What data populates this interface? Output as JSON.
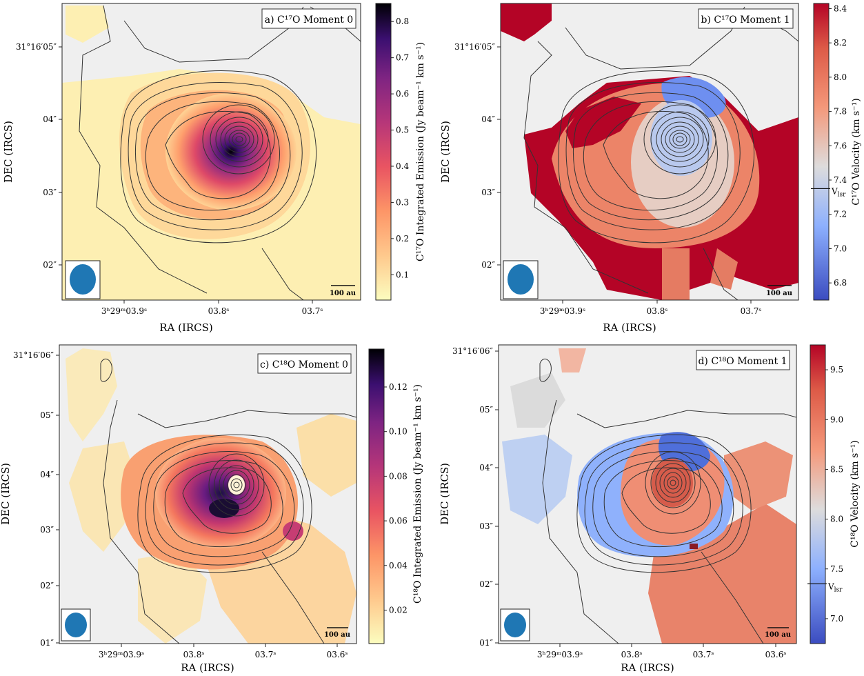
{
  "chart_data": [
    {
      "type": "heatmap",
      "panel_title": "a) C¹⁷O Moment 0",
      "xlabel": "RA (IRCS)",
      "ylabel": "DEC (IRCS)",
      "x_ticks": [
        "3ʰ29ᵐ03.9ˢ",
        "03.8ˢ",
        "03.7ˢ"
      ],
      "y_ticks": [
        "31°16′05″",
        "04″",
        "03″",
        "02″"
      ],
      "colorbar": {
        "label": "C¹⁷O Integrated Emission (Jy beam⁻¹ km s⁻¹)",
        "colormap": "magma_r",
        "range": [
          0.03,
          0.85
        ],
        "ticks": [
          "0.1",
          "0.2",
          "0.3",
          "0.4",
          "0.5",
          "0.6",
          "0.7",
          "0.8"
        ]
      },
      "scale_bar": "100 au",
      "peak_value": 0.85
    },
    {
      "type": "heatmap",
      "panel_title": "b) C¹⁷O Moment 1",
      "xlabel": "RA (IRCS)",
      "ylabel": "DEC (IRCS)",
      "x_ticks": [
        "3ʰ29ᵐ03.9ˢ",
        "03.8ˢ",
        "03.7ˢ"
      ],
      "y_ticks": [
        "31°16′05″",
        "04″",
        "03″",
        "02″"
      ],
      "colorbar": {
        "label": "C¹⁷O Velocity (km s⁻¹)",
        "colormap": "coolwarm",
        "range": [
          6.7,
          8.43
        ],
        "ticks": [
          "6.8",
          "7.0",
          "7.2",
          "7.4",
          "7.6",
          "7.8",
          "8.0",
          "8.2",
          "8.4"
        ],
        "marker": {
          "label": "V",
          "sub": "lsr",
          "value": 7.35
        }
      },
      "scale_bar": "100 au"
    },
    {
      "type": "heatmap",
      "panel_title": "c) C¹⁸O Moment 0",
      "xlabel": "RA (IRCS)",
      "ylabel": "DEC (IRCS)",
      "x_ticks": [
        "3ʰ29ᵐ03.9ˢ",
        "03.8ˢ",
        "03.7ˢ",
        "03.6ˢ"
      ],
      "y_ticks": [
        "31°16′06″",
        "05″",
        "04″",
        "03″",
        "02″",
        "01″"
      ],
      "colorbar": {
        "label": "C¹⁸O Integrated Emission (Jy beam⁻¹ km s⁻¹)",
        "colormap": "magma_r",
        "range": [
          0.005,
          0.137
        ],
        "ticks": [
          "0.02",
          "0.04",
          "0.06",
          "0.08",
          "0.10",
          "0.12"
        ]
      },
      "scale_bar": "100 au"
    },
    {
      "type": "heatmap",
      "panel_title": "d) C¹⁸O Moment 1",
      "xlabel": "RA (IRCS)",
      "ylabel": "DEC (IRCS)",
      "x_ticks": [
        "3ʰ29ᵐ03.9ˢ",
        "03.8ˢ",
        "03.7ˢ",
        "03.6ˢ"
      ],
      "y_ticks": [
        "31°16′06″",
        "05″",
        "04″",
        "03″",
        "02″",
        "01″"
      ],
      "colorbar": {
        "label": "C¹⁸O Velocity (km s⁻¹)",
        "colormap": "coolwarm",
        "range": [
          6.75,
          9.75
        ],
        "ticks": [
          "7.0",
          "7.5",
          "8.0",
          "8.5",
          "9.0",
          "9.5"
        ],
        "marker": {
          "label": "V",
          "sub": "lsr",
          "value": 7.35
        }
      },
      "scale_bar": "100 au"
    }
  ]
}
